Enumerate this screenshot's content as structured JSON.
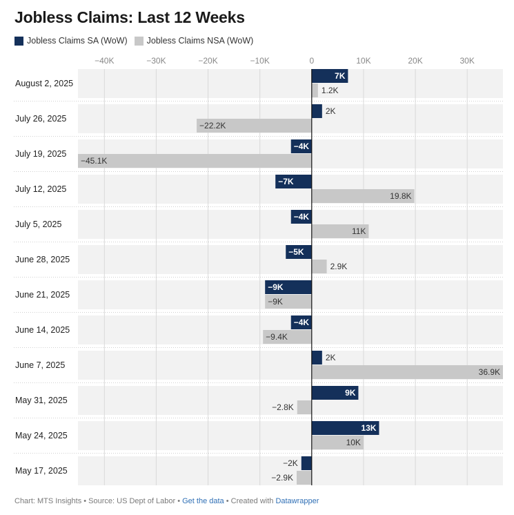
{
  "title": "Jobless Claims: Last 12 Weeks",
  "legend": [
    {
      "name": "Jobless Claims SA (WoW)",
      "color": "#14305a"
    },
    {
      "name": "Jobless Claims NSA (WoW)",
      "color": "#c8c8c8"
    }
  ],
  "footer": {
    "chart_label": "Chart: MTS Insights",
    "sep1": " • ",
    "source_label": "Source: US Dept of Labor",
    "sep2": " • ",
    "get_data": "Get the data",
    "sep3": " • ",
    "created_with": "Created with ",
    "datawrapper": "Datawrapper"
  },
  "chart_data": {
    "type": "bar",
    "orientation": "horizontal",
    "title": "Jobless Claims: Last 12 Weeks",
    "categories": [
      "August 2, 2025",
      "July 26, 2025",
      "July 19, 2025",
      "July 12, 2025",
      "July 5, 2025",
      "June 28, 2025",
      "June 21, 2025",
      "June 14, 2025",
      "June 7, 2025",
      "May 31, 2025",
      "May 24, 2025",
      "May 17, 2025"
    ],
    "xlim": [
      -45100,
      36900
    ],
    "ticks": [
      -40000,
      -30000,
      -20000,
      -10000,
      0,
      10000,
      20000,
      30000
    ],
    "tick_labels": [
      "−40K",
      "−30K",
      "−20K",
      "−10K",
      "0",
      "10K",
      "20K",
      "30K"
    ],
    "grid": true,
    "legend_position": "top-left",
    "series": [
      {
        "name": "Jobless Claims SA (WoW)",
        "color": "#14305a",
        "values": [
          7000,
          2000,
          -4000,
          -7000,
          -4000,
          -5000,
          -9000,
          -4000,
          2000,
          9000,
          13000,
          -2000
        ],
        "labels": [
          "7K",
          "2K",
          "−4K",
          "−7K",
          "−4K",
          "−5K",
          "−9K",
          "−4K",
          "2K",
          "9K",
          "13K",
          "−2K"
        ]
      },
      {
        "name": "Jobless Claims NSA (WoW)",
        "color": "#c8c8c8",
        "values": [
          1200,
          -22200,
          -45100,
          19800,
          11000,
          2900,
          -9000,
          -9400,
          36900,
          -2800,
          10000,
          -2900
        ],
        "labels": [
          "1.2K",
          "−22.2K",
          "−45.1K",
          "19.8K",
          "11K",
          "2.9K",
          "−9K",
          "−9.4K",
          "36.9K",
          "−2.8K",
          "10K",
          "−2.9K"
        ]
      }
    ]
  }
}
